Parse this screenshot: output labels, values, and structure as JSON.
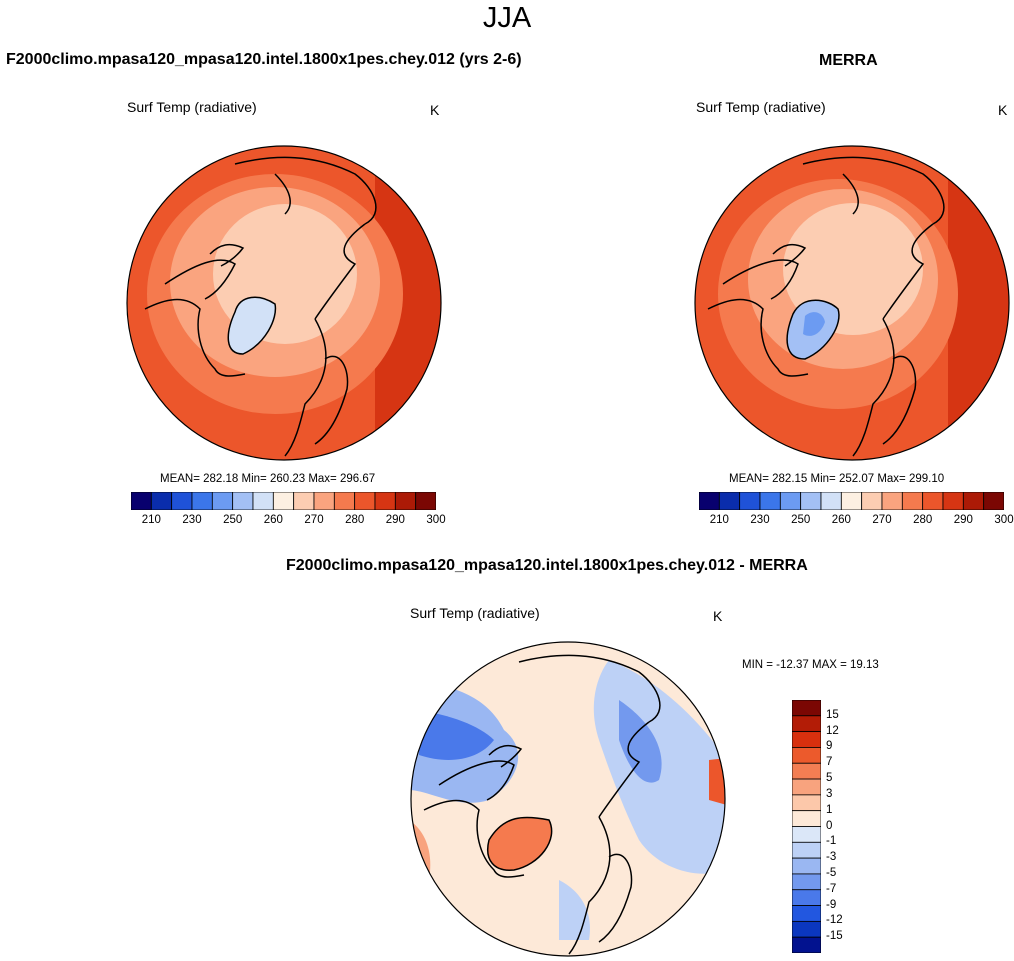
{
  "season": "JJA",
  "panels": {
    "model": {
      "title": "F2000climo.mpasa120_mpasa120.intel.1800x1pes.chey.012 (yrs 2-6)",
      "variable": "Surf Temp (radiative)",
      "units": "K",
      "stats": "MEAN= 282.18  Min= 260.23  Max= 296.67"
    },
    "obs": {
      "title": "MERRA",
      "variable": "Surf Temp (radiative)",
      "units": "K",
      "stats": "MEAN= 282.15  Min= 252.07  Max= 299.10"
    },
    "diff": {
      "title": "F2000climo.mpasa120_mpasa120.intel.1800x1pes.chey.012 - MERRA",
      "variable": "Surf Temp (radiative)",
      "units": "K",
      "stats": "MIN = -12.37 MAX =  19.13"
    }
  },
  "colorbar_abs": {
    "colors": [
      "#08006e",
      "#0a2dac",
      "#1f52d8",
      "#3b76ea",
      "#6c9bf2",
      "#a3c0f5",
      "#d2e1f7",
      "#fdf0e2",
      "#fccdb2",
      "#faa47f",
      "#f57a4e",
      "#ec562b",
      "#d63513",
      "#ac1a06",
      "#7b0703"
    ],
    "labels": [
      "210",
      "230",
      "250",
      "260",
      "270",
      "280",
      "290",
      "300"
    ]
  },
  "colorbar_diff": {
    "colors": [
      "#7b0703",
      "#b31c06",
      "#d8300e",
      "#ec5a2c",
      "#f37e53",
      "#f8a37e",
      "#fcc8aa",
      "#fde9d8",
      "#dbe7f8",
      "#bdd1f6",
      "#9ab7f2",
      "#7399ee",
      "#4a79ea",
      "#2257e0",
      "#0b37bf",
      "#02128f"
    ],
    "labels": [
      "15",
      "12",
      "9",
      "7",
      "5",
      "3",
      "1",
      "0",
      "-1",
      "-3",
      "-5",
      "-7",
      "-9",
      "-12",
      "-15"
    ]
  }
}
